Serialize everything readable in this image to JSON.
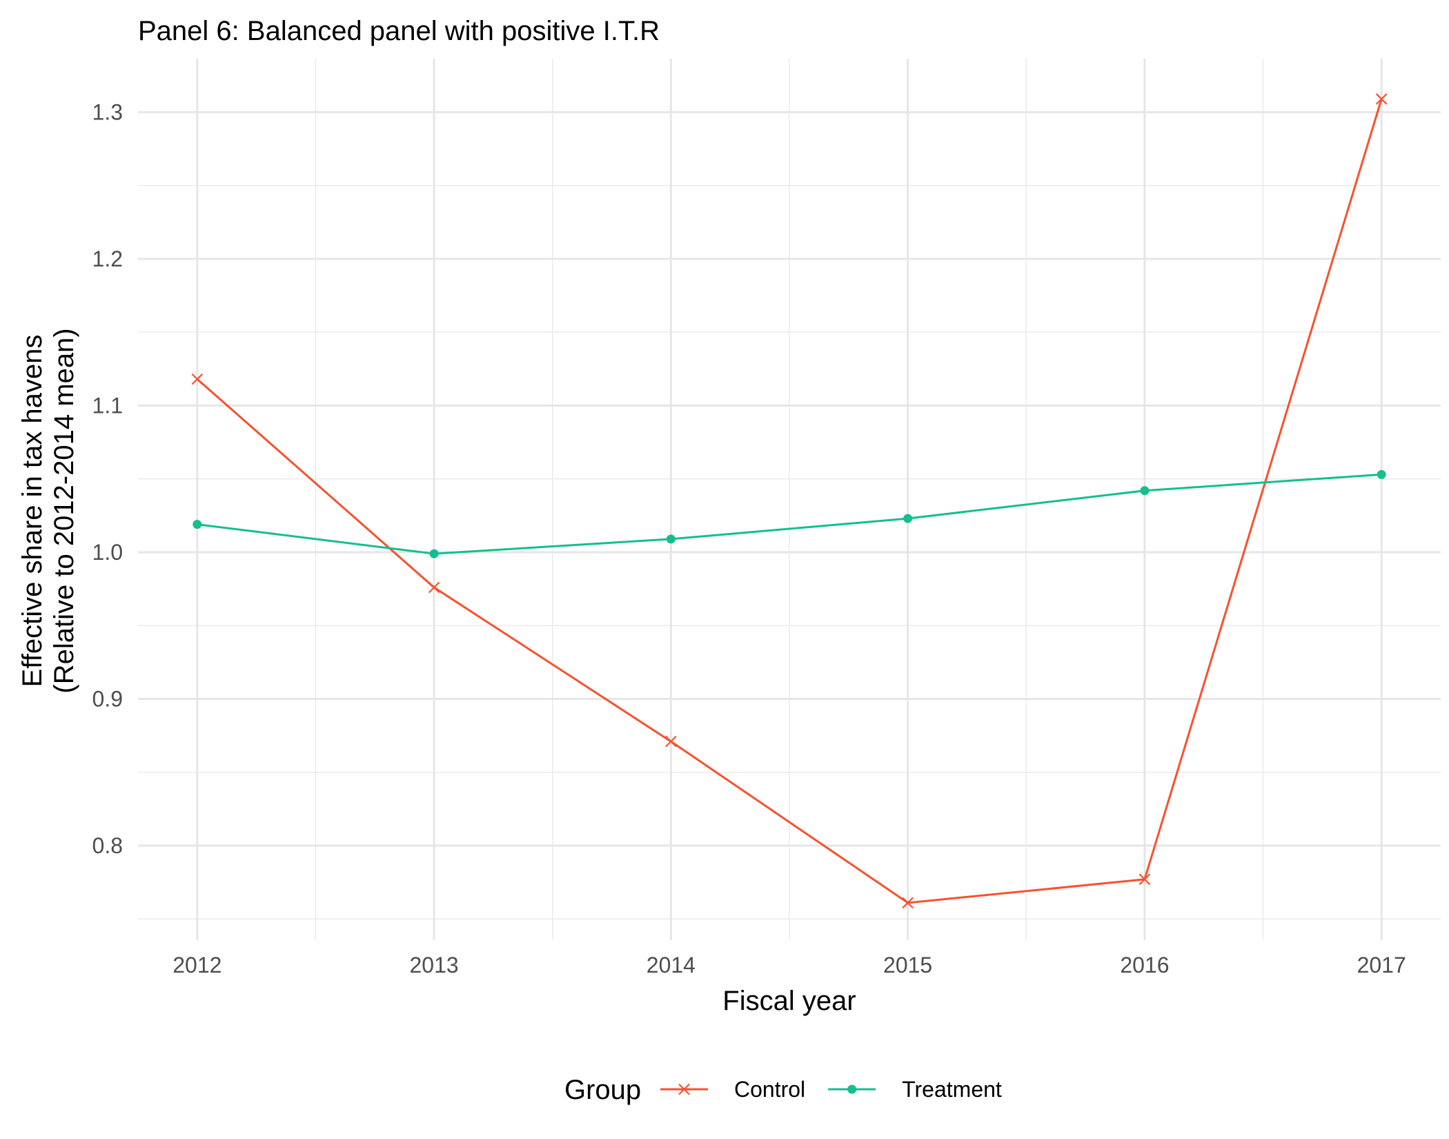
{
  "chart_data": {
    "type": "line",
    "title": "Panel 6: Balanced panel with positive I.T.R",
    "xlabel": "Fiscal year",
    "ylabel_line1": "Effective share in tax havens",
    "ylabel_line2": "(Relative to 2012-2014 mean)",
    "x": [
      2012,
      2013,
      2014,
      2015,
      2016,
      2017
    ],
    "x_tick_labels": [
      "2012",
      "2013",
      "2014",
      "2015",
      "2016",
      "2017"
    ],
    "xlim": [
      2011.75,
      2017.25
    ],
    "y_ticks": [
      0.8,
      0.9,
      1.0,
      1.1,
      1.2,
      1.3
    ],
    "y_tick_labels": [
      "0.8",
      "0.9",
      "1.0",
      "1.1",
      "1.2",
      "1.3"
    ],
    "ylim": [
      0.7355,
      1.3365
    ],
    "grid": true,
    "legend_title": "Group",
    "legend_position": "bottom",
    "series": [
      {
        "name": "Control",
        "color": "#f8512e",
        "marker": "x",
        "values": [
          1.118,
          0.976,
          0.871,
          0.761,
          0.777,
          1.309
        ]
      },
      {
        "name": "Treatment",
        "color": "#13bf8f",
        "marker": "circle",
        "values": [
          1.019,
          0.999,
          1.009,
          1.023,
          1.042,
          1.053
        ]
      }
    ]
  }
}
